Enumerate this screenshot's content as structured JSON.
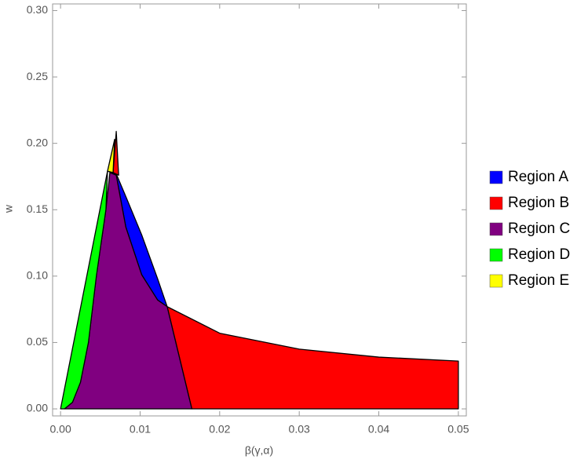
{
  "chart_data": {
    "type": "region",
    "xlabel": "β(γ,α)",
    "ylabel": "w",
    "xlim": [
      -0.001,
      0.051
    ],
    "ylim": [
      -0.0053,
      0.305
    ],
    "xticks": [
      {
        "value": 0,
        "label": "0.00"
      },
      {
        "value": 0.01,
        "label": "0.01"
      },
      {
        "value": 0.02,
        "label": "0.02"
      },
      {
        "value": 0.03,
        "label": "0.03"
      },
      {
        "value": 0.04,
        "label": "0.04"
      },
      {
        "value": 0.05,
        "label": "0.05"
      }
    ],
    "yticks": [
      {
        "value": 0,
        "label": "0.00"
      },
      {
        "value": 0.05,
        "label": "0.05"
      },
      {
        "value": 0.1,
        "label": "0.10"
      },
      {
        "value": 0.15,
        "label": "0.15"
      },
      {
        "value": 0.2,
        "label": "0.20"
      },
      {
        "value": 0.25,
        "label": "0.25"
      },
      {
        "value": 0.3,
        "label": "0.30"
      }
    ],
    "series": [
      {
        "name": "Region A",
        "color": "#0000ff",
        "x": [
          0.0062,
          0.007,
          0.0082,
          0.0102,
          0.0122,
          0.0134,
          0.0122,
          0.0102,
          0.0082,
          0.007
        ],
        "y": [
          0.178,
          0.177,
          0.16,
          0.131,
          0.098,
          0.077,
          0.082,
          0.101,
          0.137,
          0.176
        ]
      },
      {
        "name": "Region B",
        "color": "#ff0000",
        "x": [
          0.0066,
          0.007,
          0.0073,
          null,
          0.0134,
          0.02,
          0.03,
          0.04,
          0.05,
          0.05,
          0.0165
        ],
        "y": [
          0.178,
          0.209,
          0.176,
          null,
          0.077,
          0.057,
          0.045,
          0.039,
          0.036,
          0,
          0
        ]
      },
      {
        "name": "Region C",
        "color": "#800080",
        "x": [
          0.0005,
          0.0015,
          0.0025,
          0.0035,
          0.0045,
          0.0057,
          0.0062,
          0.007,
          0.0082,
          0.0102,
          0.0122,
          0.0134,
          0.0165
        ],
        "y": [
          0,
          0.005,
          0.02,
          0.05,
          0.1,
          0.15,
          0.178,
          0.176,
          0.137,
          0.101,
          0.082,
          0.077,
          0
        ]
      },
      {
        "name": "Region D",
        "color": "#00ff00",
        "x": [
          0,
          0.0059,
          0.0057,
          0.0045,
          0.0035,
          0.0025,
          0.0015,
          0.0005
        ],
        "y": [
          0,
          0.179,
          0.15,
          0.1,
          0.05,
          0.02,
          0.005,
          0
        ]
      },
      {
        "name": "Region E",
        "color": "#ffff00",
        "x": [
          0.0059,
          0.0068,
          0.0066
        ],
        "y": [
          0.179,
          0.203,
          0.178
        ]
      }
    ]
  }
}
